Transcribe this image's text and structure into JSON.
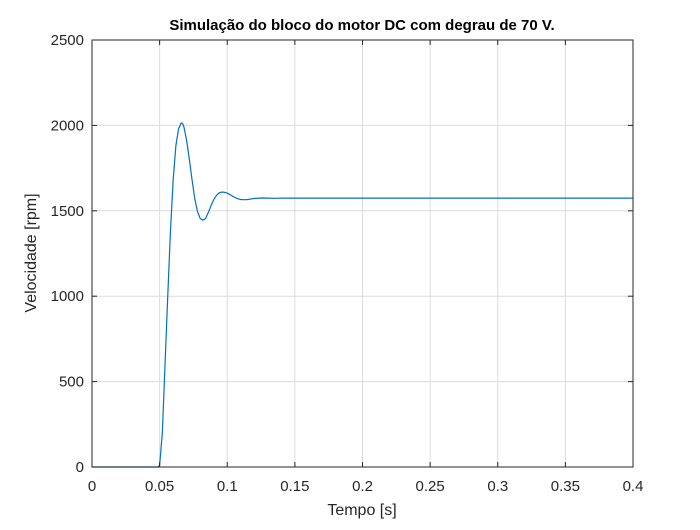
{
  "chart_data": {
    "type": "line",
    "title": "Simulação do bloco do motor DC com degrau de 70 V.",
    "xlabel": "Tempo [s]",
    "ylabel": "Velocidade [rpm]",
    "xlim": [
      0,
      0.4
    ],
    "ylim": [
      0,
      2500
    ],
    "xticks": [
      0,
      0.05,
      0.1,
      0.15,
      0.2,
      0.25,
      0.3,
      0.35,
      0.4
    ],
    "xtick_labels": [
      "0",
      "0.05",
      "0.1",
      "0.15",
      "0.2",
      "0.25",
      "0.3",
      "0.35",
      "0.4"
    ],
    "yticks": [
      0,
      500,
      1000,
      1500,
      2000,
      2500
    ],
    "ytick_labels": [
      "0",
      "500",
      "1000",
      "1500",
      "2000",
      "2500"
    ],
    "grid": true,
    "line_color": "#0072BD",
    "series": [
      {
        "x": [
          0,
          0.049,
          0.05,
          0.052,
          0.054,
          0.056,
          0.058,
          0.06,
          0.062,
          0.064,
          0.066,
          0.067,
          0.068,
          0.07,
          0.072,
          0.074,
          0.076,
          0.078,
          0.08,
          0.082,
          0.084,
          0.086,
          0.088,
          0.09,
          0.092,
          0.094,
          0.096,
          0.098,
          0.1,
          0.102,
          0.104,
          0.106,
          0.108,
          0.11,
          0.112,
          0.114,
          0.116,
          0.118,
          0.12,
          0.125,
          0.13,
          0.135,
          0.14,
          0.15,
          0.16,
          0.2,
          0.4
        ],
        "y": [
          0,
          0,
          10,
          200,
          600,
          1000,
          1380,
          1680,
          1880,
          1980,
          2015,
          2010,
          1990,
          1910,
          1800,
          1680,
          1570,
          1495,
          1455,
          1445,
          1455,
          1490,
          1530,
          1565,
          1590,
          1605,
          1610,
          1608,
          1603,
          1595,
          1585,
          1577,
          1570,
          1566,
          1565,
          1565,
          1567,
          1570,
          1572,
          1575,
          1574,
          1573,
          1574,
          1574,
          1574,
          1574,
          1574
        ]
      }
    ]
  }
}
